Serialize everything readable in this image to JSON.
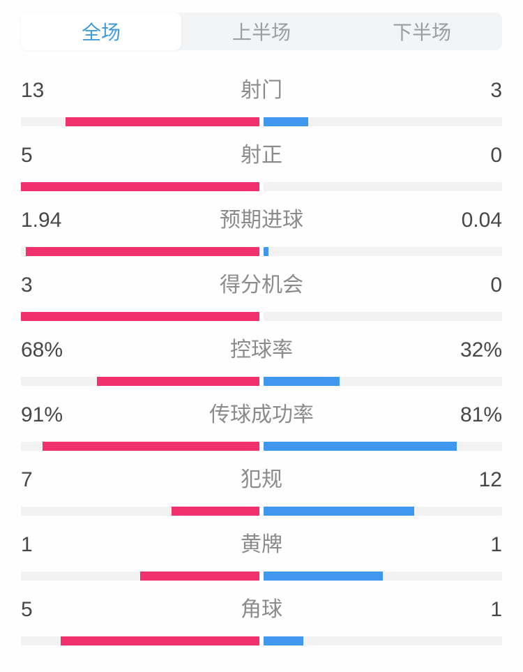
{
  "tabs": {
    "items": [
      {
        "label": "全场",
        "active": true
      },
      {
        "label": "上半场",
        "active": false
      },
      {
        "label": "下半场",
        "active": false
      }
    ]
  },
  "colors": {
    "home": "#F1316D",
    "away": "#4097EE",
    "track": "#F2F2F3",
    "tab_bg": "#F3F4F6",
    "tab_active_text": "#3F9BDB",
    "tab_inactive_text": "#9A9DA1",
    "value_text": "#474747",
    "label_text": "#8B8B8B"
  },
  "stats": {
    "home_side": "left-pink",
    "away_side": "right-blue",
    "rows": [
      {
        "label": "射门",
        "home": "13",
        "away": "3",
        "home_pct": 81.25,
        "away_pct": 18.75
      },
      {
        "label": "射正",
        "home": "5",
        "away": "0",
        "home_pct": 100,
        "away_pct": 0
      },
      {
        "label": "预期进球",
        "home": "1.94",
        "away": "0.04",
        "home_pct": 98,
        "away_pct": 2
      },
      {
        "label": "得分机会",
        "home": "3",
        "away": "0",
        "home_pct": 100,
        "away_pct": 0
      },
      {
        "label": "控球率",
        "home": "68%",
        "away": "32%",
        "home_pct": 68,
        "away_pct": 32
      },
      {
        "label": "传球成功率",
        "home": "91%",
        "away": "81%",
        "home_pct": 91,
        "away_pct": 81
      },
      {
        "label": "犯规",
        "home": "7",
        "away": "12",
        "home_pct": 36.84,
        "away_pct": 63.16
      },
      {
        "label": "黄牌",
        "home": "1",
        "away": "1",
        "home_pct": 50,
        "away_pct": 50
      },
      {
        "label": "角球",
        "home": "5",
        "away": "1",
        "home_pct": 83.33,
        "away_pct": 16.67
      }
    ]
  }
}
